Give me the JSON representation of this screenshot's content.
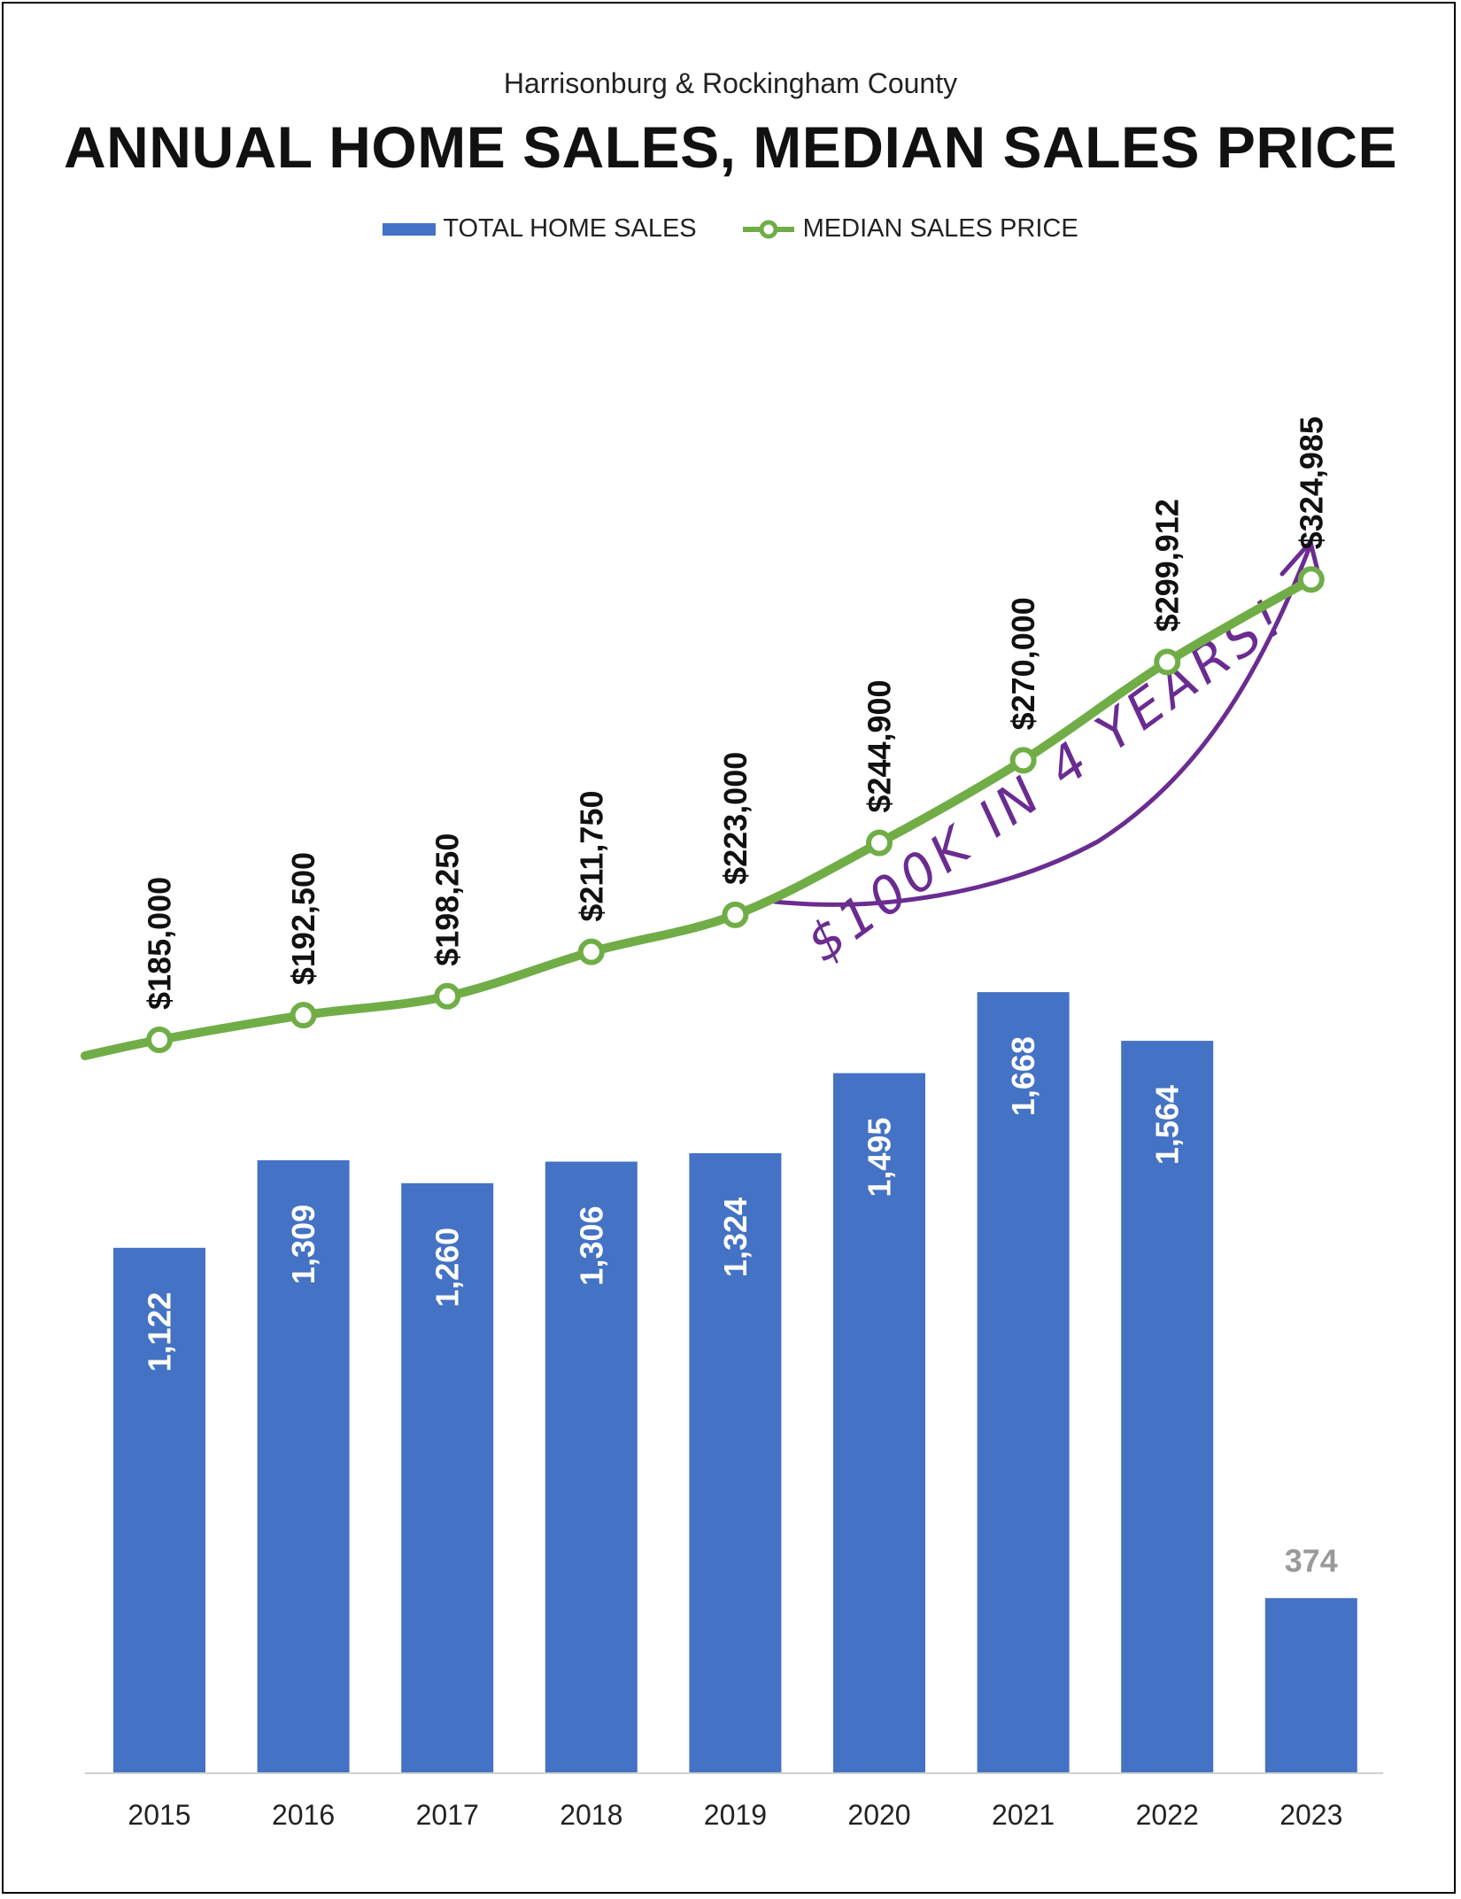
{
  "subtitle": "Harrisonburg & Rockingham County",
  "title": "ANNUAL HOME SALES, MEDIAN SALES PRICE",
  "legend": {
    "bars": "TOTAL HOME SALES",
    "line": "MEDIAN SALES PRICE"
  },
  "annotation": "$100K IN 4 YEARS!",
  "colors": {
    "bars": "#4472c4",
    "line": "#70ad47",
    "annotation": "#6a2c91"
  },
  "chart_data": {
    "type": "bar",
    "categories": [
      "2015",
      "2016",
      "2017",
      "2018",
      "2019",
      "2020",
      "2021",
      "2022",
      "2023"
    ],
    "series": [
      {
        "name": "TOTAL HOME SALES",
        "type": "bar",
        "values": [
          1122,
          1309,
          1260,
          1306,
          1324,
          1495,
          1668,
          1564,
          374
        ],
        "labels": [
          "1,122",
          "1,309",
          "1,260",
          "1,306",
          "1,324",
          "1,495",
          "1,668",
          "1,564",
          "374"
        ]
      },
      {
        "name": "MEDIAN SALES PRICE",
        "type": "line",
        "values": [
          185000,
          192500,
          198250,
          211750,
          223000,
          244900,
          270000,
          299912,
          324985
        ],
        "labels": [
          "$185,000",
          "$192,500",
          "$198,250",
          "$211,750",
          "$223,000",
          "$244,900",
          "$270,000",
          "$299,912",
          "$324,985"
        ]
      }
    ],
    "title": "ANNUAL HOME SALES, MEDIAN SALES PRICE",
    "legend_position": "top"
  }
}
